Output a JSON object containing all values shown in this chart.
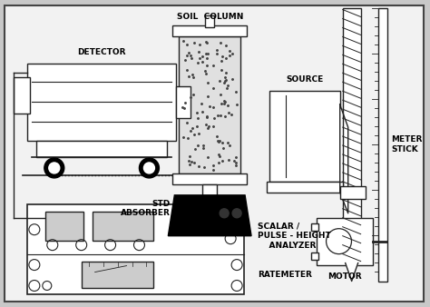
{
  "background_color": "#f0f0f0",
  "border_color": "#444444",
  "line_color": "#222222",
  "fig_bg": "#c8c8c8",
  "inner_bg": "#f2f2f2",
  "labels": {
    "detector": "DETECTOR",
    "soil_column": "SOIL  COLUMN",
    "source": "SOURCE",
    "std_absorber": "STD\nABSORBER",
    "scalar": "SCALAR /\nPULSE - HEIGHT\n    ANALYZER",
    "ratemeter": "RATEMETER",
    "meter_stick": "METER\nSTICK",
    "motor": "MOTOR"
  },
  "font_size": 6.5
}
